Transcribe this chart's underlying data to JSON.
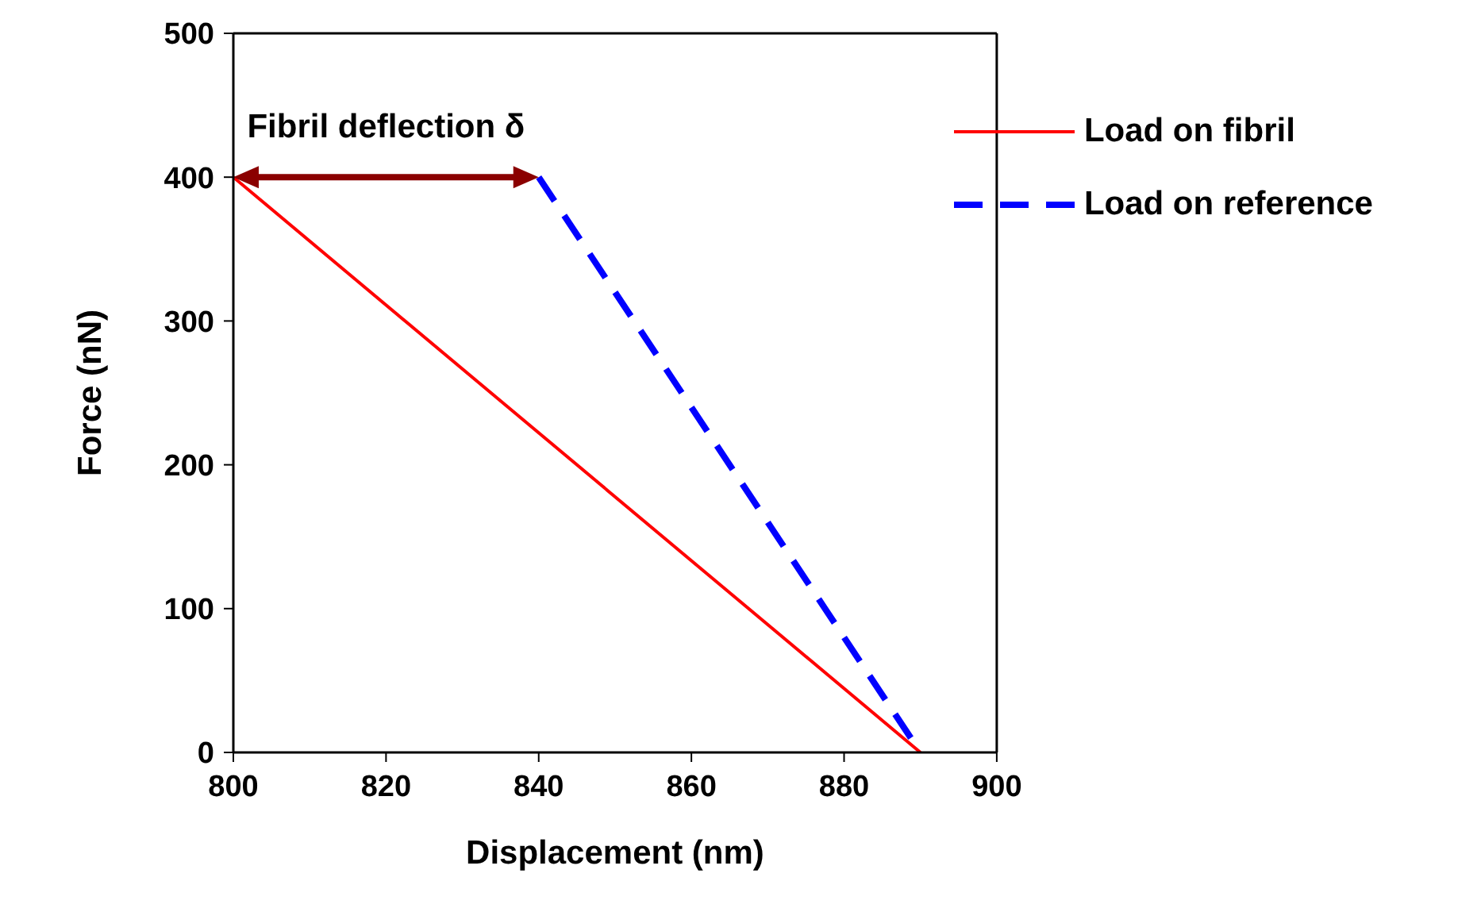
{
  "chart_data": {
    "type": "line",
    "xlabel": "Displacement (nm)",
    "ylabel": "Force (nN)",
    "xlim": [
      800,
      900
    ],
    "xticks": [
      800,
      820,
      840,
      860,
      880,
      900
    ],
    "ylim": [
      0,
      500
    ],
    "yticks": [
      0,
      100,
      200,
      300,
      400,
      500
    ],
    "series": [
      {
        "name": "Load on fibril",
        "color": "#ff0000",
        "x": [
          800,
          890
        ],
        "values": [
          400,
          0
        ],
        "line_style": "solid"
      },
      {
        "name": "Load on reference",
        "color": "#0000ff",
        "x": [
          840,
          890
        ],
        "values": [
          400,
          0
        ],
        "line_style": "dashed"
      }
    ],
    "annotations": [
      "Fibril deflection δ"
    ],
    "legend": "top right",
    "marker": "none"
  }
}
